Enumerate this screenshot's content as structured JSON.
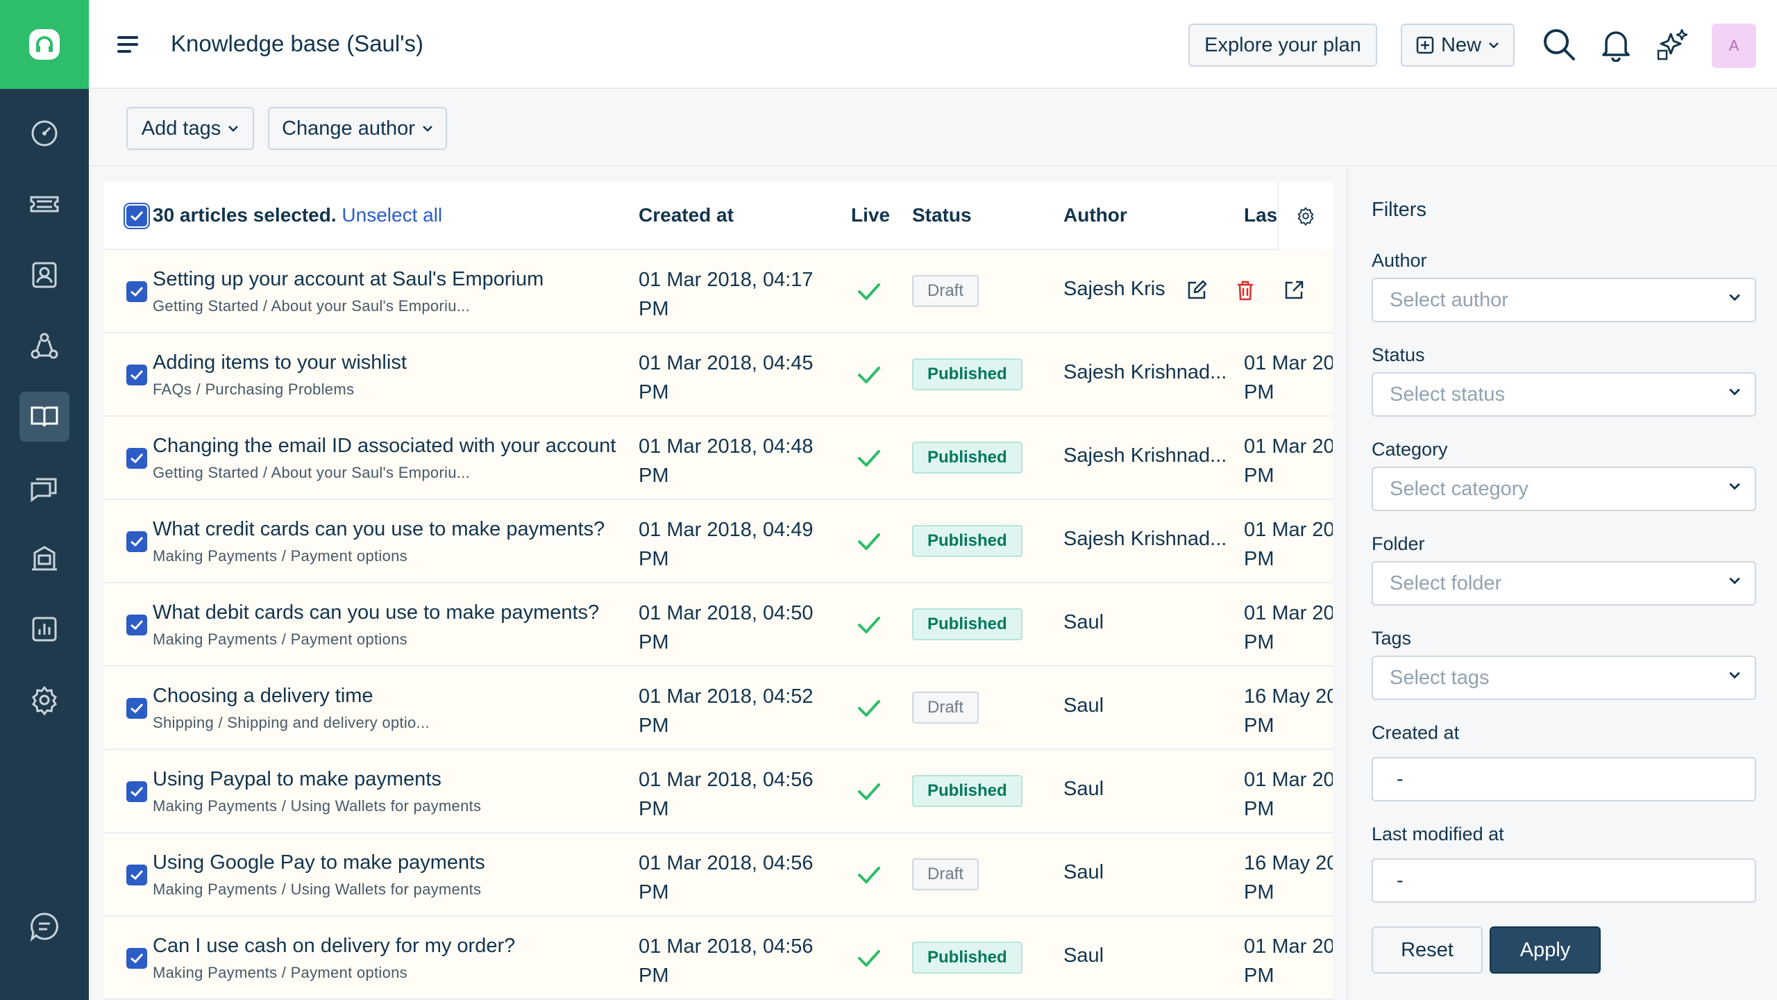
{
  "header": {
    "title": "Knowledge base (Saul's)",
    "explore_label": "Explore your plan",
    "new_label": "New",
    "avatar_initial": "A"
  },
  "nav": {
    "items": [
      "dashboard-icon",
      "tickets-icon",
      "contacts-icon",
      "groups-icon",
      "solutions-icon",
      "forums-icon",
      "admin-icon",
      "reports-icon",
      "settings-icon"
    ],
    "active": "solutions-icon",
    "bottom": "chat-icon"
  },
  "actions": {
    "add_tags": "Add tags",
    "change_author": "Change author"
  },
  "table": {
    "selection_text": "30 articles selected.",
    "unselect_label": "Unselect all",
    "columns": {
      "created": "Created at",
      "live": "Live",
      "status": "Status",
      "author": "Author",
      "modified": "Last"
    },
    "rows": [
      {
        "title": "Setting up your account at Saul's Emporium",
        "path": "Getting Started / About your Saul's Emporiu...",
        "created_1": "01 Mar 2018, 04:17",
        "created_2": "PM",
        "status": "Draft",
        "author": "Sajesh Kris",
        "modified_1": "",
        "modified_2": "",
        "hovered": true
      },
      {
        "title": "Adding items to your wishlist",
        "path": "FAQs / Purchasing Problems",
        "created_1": "01 Mar 2018, 04:45",
        "created_2": "PM",
        "status": "Published",
        "author": "Sajesh Krishnad...",
        "modified_1": "01 Mar 20",
        "modified_2": "PM"
      },
      {
        "title": "Changing the email ID associated with your account",
        "path": "Getting Started / About your Saul's Emporiu...",
        "created_1": "01 Mar 2018, 04:48",
        "created_2": "PM",
        "status": "Published",
        "author": "Sajesh Krishnad...",
        "modified_1": "01 Mar 20",
        "modified_2": "PM"
      },
      {
        "title": "What credit cards can you use to make payments?",
        "path": "Making Payments / Payment options",
        "created_1": "01 Mar 2018, 04:49",
        "created_2": "PM",
        "status": "Published",
        "author": "Sajesh Krishnad...",
        "modified_1": "01 Mar 20",
        "modified_2": "PM"
      },
      {
        "title": "What debit cards can you use to make payments?",
        "path": "Making Payments / Payment options",
        "created_1": "01 Mar 2018, 04:50",
        "created_2": "PM",
        "status": "Published",
        "author": "Saul",
        "modified_1": "01 Mar 20",
        "modified_2": "PM"
      },
      {
        "title": "Choosing a delivery time",
        "path": "Shipping / Shipping and delivery optio...",
        "created_1": "01 Mar 2018, 04:52",
        "created_2": "PM",
        "status": "Draft",
        "author": "Saul",
        "modified_1": "16 May 20",
        "modified_2": "PM"
      },
      {
        "title": "Using Paypal to make payments",
        "path": "Making Payments / Using Wallets for payments",
        "created_1": "01 Mar 2018, 04:56",
        "created_2": "PM",
        "status": "Published",
        "author": "Saul",
        "modified_1": "01 Mar 20",
        "modified_2": "PM"
      },
      {
        "title": "Using Google Pay to make payments",
        "path": "Making Payments / Using Wallets for payments",
        "created_1": "01 Mar 2018, 04:56",
        "created_2": "PM",
        "status": "Draft",
        "author": "Saul",
        "modified_1": "16 May 20",
        "modified_2": "PM"
      },
      {
        "title": "Can I use cash on delivery for my order?",
        "path": "Making Payments / Payment options",
        "created_1": "01 Mar 2018, 04:56",
        "created_2": "PM",
        "status": "Published",
        "author": "Saul",
        "modified_1": "01 Mar 20",
        "modified_2": "PM"
      }
    ]
  },
  "filters": {
    "title": "Filters",
    "author_label": "Author",
    "author_placeholder": "Select author",
    "status_label": "Status",
    "status_placeholder": "Select status",
    "category_label": "Category",
    "category_placeholder": "Select category",
    "folder_label": "Folder",
    "folder_placeholder": "Select folder",
    "tags_label": "Tags",
    "tags_placeholder": "Select tags",
    "created_label": "Created at",
    "created_value": "-",
    "modified_label": "Last modified at",
    "modified_value": "-",
    "reset_label": "Reset",
    "apply_label": "Apply"
  },
  "colors": {
    "brand": "#2ebd6b",
    "nav_bg": "#1f3a4d",
    "accent": "#2c5cc5",
    "live_check": "#2ebd6b",
    "delete": "#d72d30"
  }
}
